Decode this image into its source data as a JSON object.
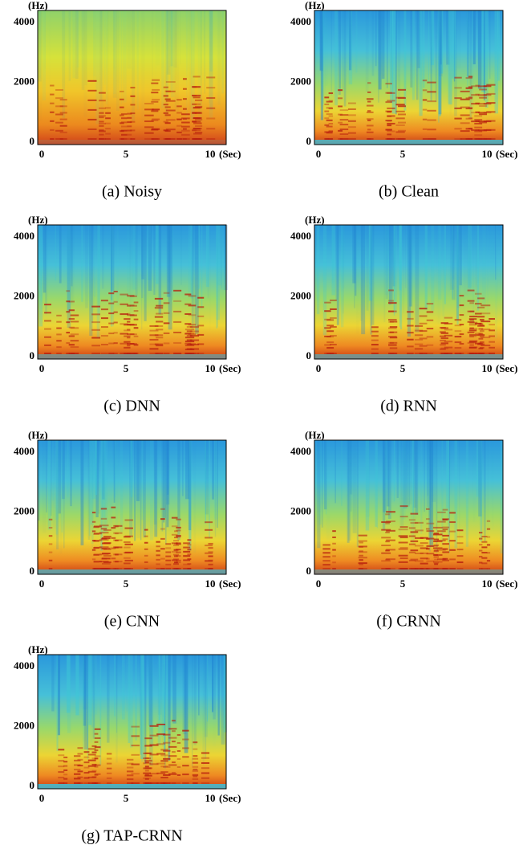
{
  "figure": {
    "panels": [
      {
        "caption": "(a) Noisy",
        "y_unit": "(Hz)",
        "yticks": [
          4000,
          2000,
          0
        ],
        "xticks": [
          0,
          5,
          10
        ],
        "x_unit": "(Sec)"
      },
      {
        "caption": "(b) Clean",
        "y_unit": "(Hz)",
        "yticks": [
          4000,
          2000,
          0
        ],
        "xticks": [
          0,
          5,
          10
        ],
        "x_unit": "(Sec)"
      },
      {
        "caption": "(c) DNN",
        "y_unit": "(Hz)",
        "yticks": [
          4000,
          2000,
          0
        ],
        "xticks": [
          0,
          5,
          10
        ],
        "x_unit": "(Sec)"
      },
      {
        "caption": "(d) RNN",
        "y_unit": "(Hz)",
        "yticks": [
          4000,
          2000,
          0
        ],
        "xticks": [
          0,
          5,
          10
        ],
        "x_unit": "(Sec)"
      },
      {
        "caption": "(e) CNN",
        "y_unit": "(Hz)",
        "yticks": [
          4000,
          2000,
          0
        ],
        "xticks": [
          0,
          5,
          10
        ],
        "x_unit": "(Sec)"
      },
      {
        "caption": "(f) CRNN",
        "y_unit": "(Hz)",
        "yticks": [
          4000,
          2000,
          0
        ],
        "xticks": [
          0,
          5,
          10
        ],
        "x_unit": "(Sec)"
      },
      {
        "caption": "(g) TAP-CRNN",
        "y_unit": "(Hz)",
        "yticks": [
          4000,
          2000,
          0
        ],
        "xticks": [
          0,
          5,
          10
        ],
        "x_unit": "(Sec)"
      }
    ]
  }
}
